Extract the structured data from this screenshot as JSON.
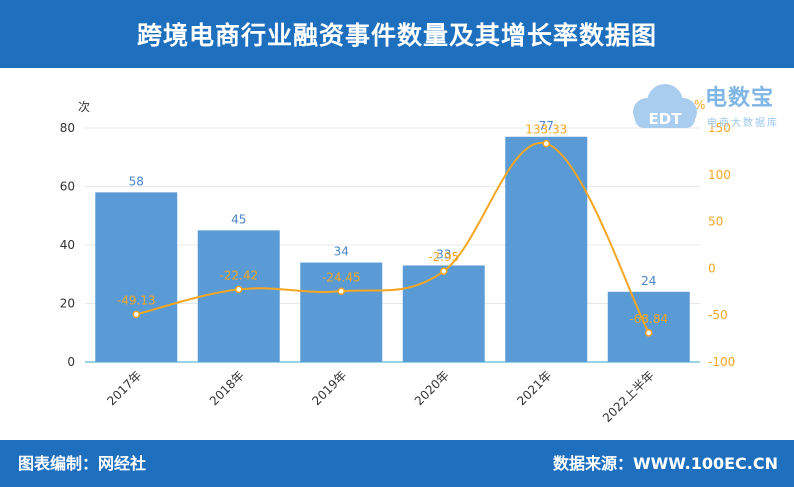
{
  "header": {
    "title": "跨境电商行业融资事件数量及其增长率数据图"
  },
  "footer": {
    "left": "图表编制：网经社",
    "right": "数据来源：WWW.100EC.CN"
  },
  "logo": {
    "name": "电数宝",
    "tagline": "电商大数据库",
    "mark": "EDT"
  },
  "colors": {
    "bar": "#5b9bd5",
    "line": "#f5a623",
    "header": "#1f6fbf",
    "bar_label": "#4a86c8"
  },
  "chart_data": {
    "type": "bar",
    "categories": [
      "2017年",
      "2018年",
      "2019年",
      "2020年",
      "2021年",
      "2022上半年"
    ],
    "series": [
      {
        "axis": "left",
        "type": "bar",
        "values": [
          58,
          45,
          34,
          33,
          77,
          24
        ]
      },
      {
        "axis": "right",
        "type": "line",
        "values": [
          -49.13,
          -22.42,
          -24.45,
          -2.95,
          133.33,
          -68.84
        ]
      }
    ],
    "left_axis": {
      "unit": "次",
      "range": [
        0,
        80
      ],
      "ticks": [
        0,
        20,
        40,
        60,
        80
      ]
    },
    "right_axis": {
      "unit": "%",
      "range": [
        -100,
        150
      ],
      "ticks": [
        -100,
        -50,
        0,
        50,
        100,
        150
      ]
    },
    "line_labels": [
      "-49.13",
      "-22.42",
      "-24.45",
      "-2.95",
      "133.33",
      "-68.84"
    ],
    "grid": true
  }
}
